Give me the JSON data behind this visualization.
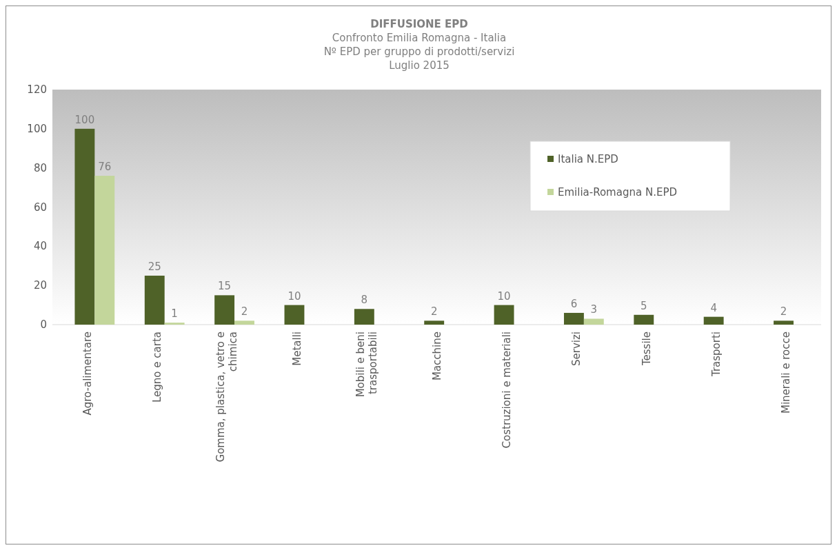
{
  "chart_data": {
    "type": "bar",
    "title": "DIFFUSIONE EPD",
    "subtitle": "Confronto Emilia Romagna - Italia\nNº EPD per gruppo di prodotti/servizi\nLuglio 2015",
    "categories": [
      "Agro-alimentare",
      "Legno e carta",
      "Gomma, plastica, vetro e chimica",
      "Metalli",
      "Mobili e beni trasportabili",
      "Macchine",
      "Costruzioni e materiali",
      "Servizi",
      "Tessile",
      "Trasporti",
      "Minerali e rocce"
    ],
    "series": [
      {
        "name": "Italia N.EPD",
        "color": "#4f6228",
        "values": [
          100,
          25,
          15,
          10,
          8,
          2,
          10,
          6,
          5,
          4,
          2
        ]
      },
      {
        "name": "Emilia-Romagna N.EPD",
        "color": "#c3d69b",
        "values": [
          76,
          1,
          2,
          null,
          null,
          null,
          null,
          3,
          null,
          null,
          null
        ]
      }
    ],
    "ylim": [
      0,
      120
    ],
    "yticks": [
      0,
      20,
      40,
      60,
      80,
      100,
      120
    ],
    "grid": false,
    "legend": "top right",
    "data_labels": true
  }
}
